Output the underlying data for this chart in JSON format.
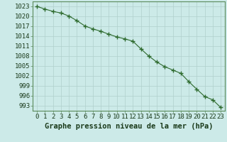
{
  "x": [
    0,
    1,
    2,
    3,
    4,
    5,
    6,
    7,
    8,
    9,
    10,
    11,
    12,
    13,
    14,
    15,
    16,
    17,
    18,
    19,
    20,
    21,
    22,
    23
  ],
  "y": [
    1023,
    1022.2,
    1021.5,
    1021.0,
    1020.1,
    1018.7,
    1017.1,
    1016.2,
    1015.5,
    1014.6,
    1013.8,
    1013.2,
    1012.5,
    1010.2,
    1008.0,
    1006.2,
    1004.8,
    1003.8,
    1002.8,
    1000.3,
    998.0,
    995.8,
    994.8,
    992.5
  ],
  "line_color": "#2d6a2d",
  "marker": "+",
  "marker_size": 4,
  "marker_linewidth": 1.0,
  "line_width": 0.8,
  "bg_color": "#cceae8",
  "grid_major_color": "#b0d0cc",
  "grid_minor_color": "#c8e2de",
  "ylabel_ticks": [
    993,
    996,
    999,
    1002,
    1005,
    1008,
    1011,
    1014,
    1017,
    1020,
    1023
  ],
  "xlabel": "Graphe pression niveau de la mer (hPa)",
  "xlim": [
    -0.5,
    23.5
  ],
  "ylim": [
    991.5,
    1024.5
  ],
  "axis_fontsize": 6.5,
  "label_fontsize": 7.5
}
